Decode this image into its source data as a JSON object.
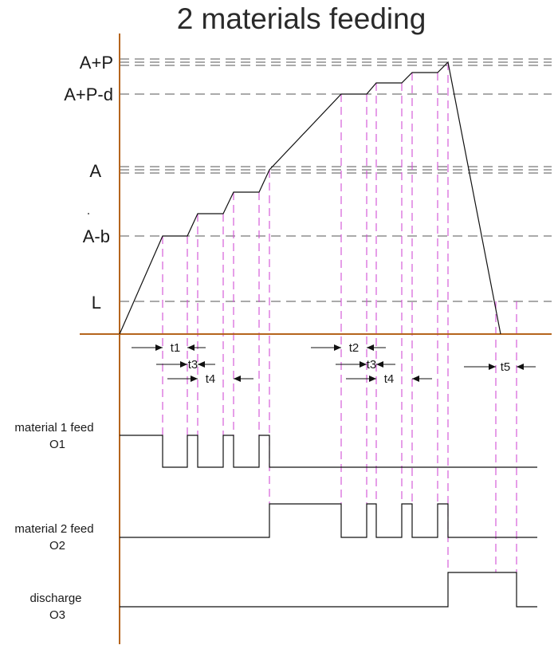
{
  "title": "2 materials feeding",
  "levels": [
    {
      "id": "ap",
      "label": "A+P"
    },
    {
      "id": "apd",
      "label": "A+P-d"
    },
    {
      "id": "a",
      "label": "A"
    },
    {
      "id": "ab",
      "label": "A-b"
    },
    {
      "id": "l",
      "label": "L"
    }
  ],
  "timing_labels": [
    "t1",
    "t3",
    "t4",
    "t2",
    "t3",
    "t4",
    "t5"
  ],
  "signals": [
    {
      "id": "o1",
      "name": "material 1 feed",
      "code": "O1"
    },
    {
      "id": "o2",
      "name": "material 2 feed",
      "code": "O2"
    },
    {
      "id": "o3",
      "name": "discharge",
      "code": "O3"
    }
  ],
  "colors": {
    "axis": "#b5651d",
    "guide": "#d24fd6",
    "line": "#111111",
    "reference": "#555555"
  }
}
